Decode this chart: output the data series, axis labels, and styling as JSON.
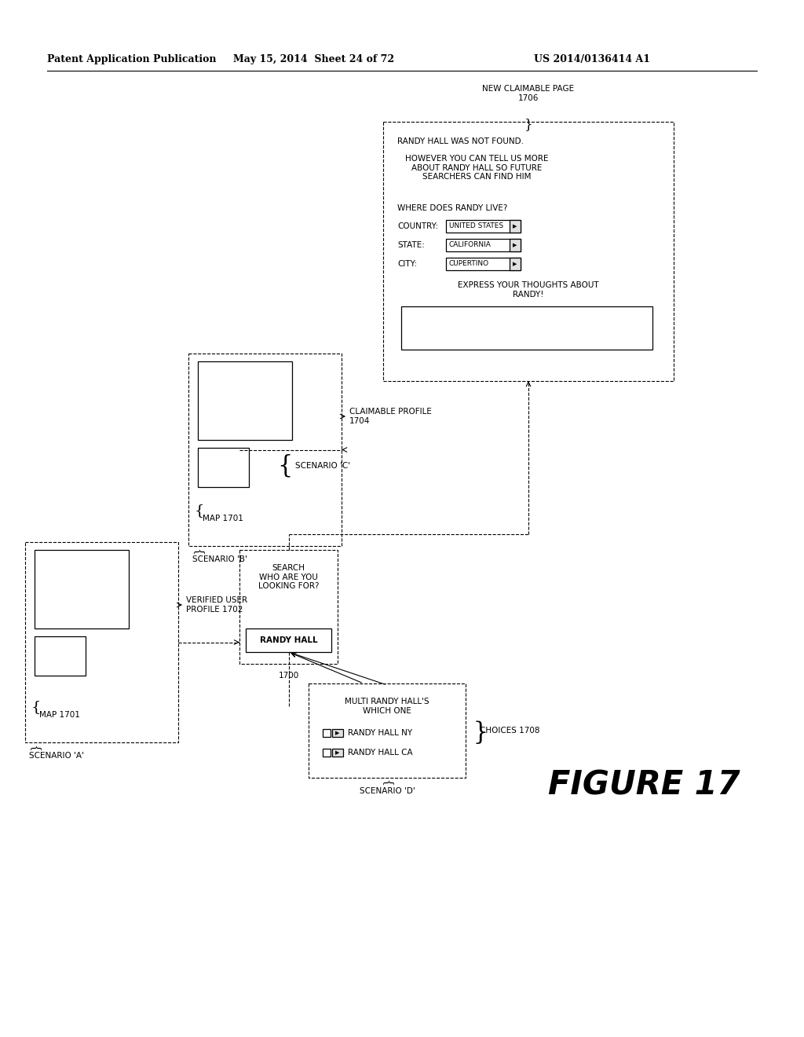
{
  "header_left": "Patent Application Publication",
  "header_mid": "May 15, 2014  Sheet 24 of 72",
  "header_right": "US 2014/0136414 A1",
  "figure_label": "FIGURE 17",
  "bg_color": "#ffffff",
  "line_color": "#000000",
  "scenario_a_label": "SCENARIO 'A'",
  "scenario_b_label": "SCENARIO 'B'",
  "scenario_c_label": "SCENARIO 'C'",
  "scenario_d_label": "SCENARIO 'D'",
  "map_label": "MAP 1701",
  "verified_label": "VERIFIED USER\nPROFILE 1702",
  "claimable_label": "CLAIMABLE PROFILE\n1704",
  "search_label": "SEARCH\nWHO ARE YOU\nLOOKING FOR?",
  "randy_hall_label": "RANDY HALL",
  "node_1700": "1700",
  "new_claimable_label": "NEW CLAIMABLE PAGE\n1706",
  "choices_label": "CHOICES 1708",
  "not_found_text": "RANDY HALL WAS NOT FOUND.",
  "however_text": "HOWEVER YOU CAN TELL US MORE\nABOUT RANDY HALL SO FUTURE\nSEARCHERS CAN FIND HIM",
  "where_text": "WHERE DOES RANDY LIVE?",
  "country_text": "COUNTRY:",
  "country_val": "UNITED STATES",
  "state_text": "STATE:",
  "state_val": "CALIFORNIA",
  "city_text": "CITY:",
  "city_val": "CUPERTINO",
  "express_text": "EXPRESS YOUR THOUGHTS ABOUT\nRANDY!",
  "multi_text": "MULTI RANDY HALL'S\nWHICH ONE",
  "randy_ny": "RANDY HALL NY",
  "randy_ca": "RANDY HALL CA"
}
